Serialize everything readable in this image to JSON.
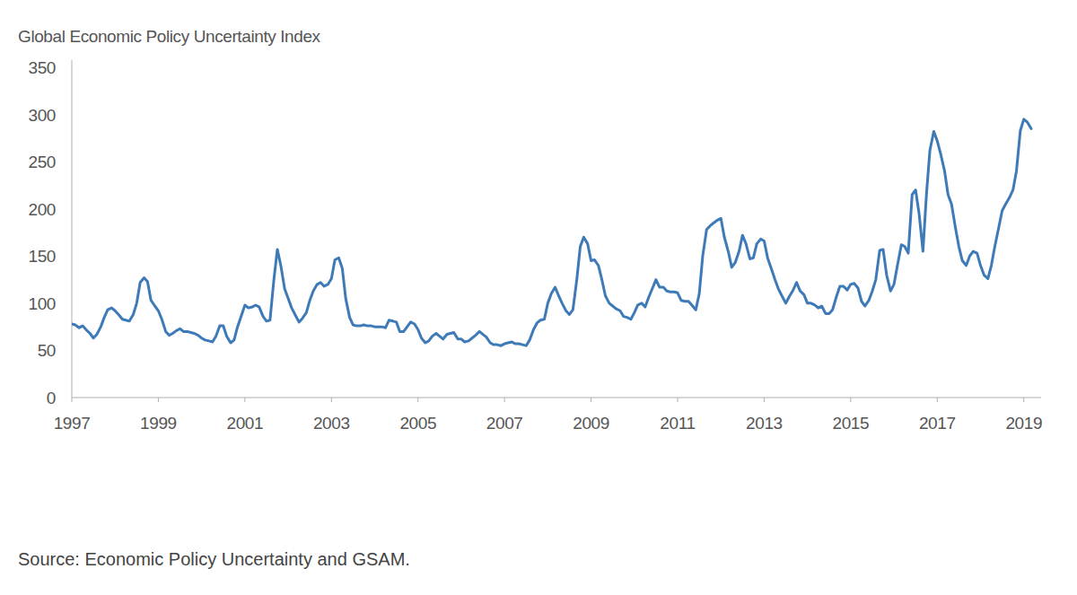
{
  "chart_data": {
    "type": "line",
    "title": "Global Economic Policy Uncertainty Index",
    "source": "Source: Economic Policy Uncertainty and GSAM.",
    "color": "#3f7ab8",
    "xlim": [
      1997,
      2019.4
    ],
    "xticks": [
      1997,
      1999,
      2001,
      2003,
      2005,
      2007,
      2009,
      2011,
      2013,
      2015,
      2017,
      2019
    ],
    "ylim": [
      0,
      350
    ],
    "yticks": [
      0,
      50,
      100,
      150,
      200,
      250,
      300,
      350
    ],
    "grid": false,
    "x": [
      1997.0,
      1997.08,
      1997.17,
      1997.25,
      1997.33,
      1997.42,
      1997.5,
      1997.58,
      1997.67,
      1997.75,
      1997.83,
      1997.92,
      1998.0,
      1998.08,
      1998.17,
      1998.25,
      1998.33,
      1998.42,
      1998.5,
      1998.58,
      1998.67,
      1998.75,
      1998.83,
      1998.92,
      1999.0,
      1999.08,
      1999.17,
      1999.25,
      1999.33,
      1999.42,
      1999.5,
      1999.58,
      1999.67,
      1999.75,
      1999.83,
      1999.92,
      2000.0,
      2000.08,
      2000.17,
      2000.25,
      2000.33,
      2000.42,
      2000.5,
      2000.58,
      2000.67,
      2000.75,
      2000.83,
      2000.92,
      2001.0,
      2001.08,
      2001.17,
      2001.25,
      2001.33,
      2001.42,
      2001.5,
      2001.58,
      2001.67,
      2001.75,
      2001.83,
      2001.92,
      2002.0,
      2002.08,
      2002.17,
      2002.25,
      2002.33,
      2002.42,
      2002.5,
      2002.58,
      2002.67,
      2002.75,
      2002.83,
      2002.92,
      2003.0,
      2003.08,
      2003.17,
      2003.25,
      2003.33,
      2003.42,
      2003.5,
      2003.58,
      2003.67,
      2003.75,
      2003.83,
      2003.92,
      2004.0,
      2004.08,
      2004.17,
      2004.25,
      2004.33,
      2004.42,
      2004.5,
      2004.58,
      2004.67,
      2004.75,
      2004.83,
      2004.92,
      2005.0,
      2005.08,
      2005.17,
      2005.25,
      2005.33,
      2005.42,
      2005.5,
      2005.58,
      2005.67,
      2005.75,
      2005.83,
      2005.92,
      2006.0,
      2006.08,
      2006.17,
      2006.25,
      2006.33,
      2006.42,
      2006.5,
      2006.58,
      2006.67,
      2006.75,
      2006.83,
      2006.92,
      2007.0,
      2007.08,
      2007.17,
      2007.25,
      2007.33,
      2007.42,
      2007.5,
      2007.58,
      2007.67,
      2007.75,
      2007.83,
      2007.92,
      2008.0,
      2008.08,
      2008.17,
      2008.25,
      2008.33,
      2008.42,
      2008.5,
      2008.58,
      2008.67,
      2008.75,
      2008.83,
      2008.92,
      2009.0,
      2009.08,
      2009.17,
      2009.25,
      2009.33,
      2009.42,
      2009.5,
      2009.58,
      2009.67,
      2009.75,
      2009.83,
      2009.92,
      2010.0,
      2010.08,
      2010.17,
      2010.25,
      2010.33,
      2010.42,
      2010.5,
      2010.58,
      2010.67,
      2010.75,
      2010.83,
      2010.92,
      2011.0,
      2011.08,
      2011.17,
      2011.25,
      2011.33,
      2011.42,
      2011.5,
      2011.58,
      2011.67,
      2011.75,
      2011.83,
      2011.92,
      2012.0,
      2012.08,
      2012.17,
      2012.25,
      2012.33,
      2012.42,
      2012.5,
      2012.58,
      2012.67,
      2012.75,
      2012.83,
      2012.92,
      2013.0,
      2013.08,
      2013.17,
      2013.25,
      2013.33,
      2013.42,
      2013.5,
      2013.58,
      2013.67,
      2013.75,
      2013.83,
      2013.92,
      2014.0,
      2014.08,
      2014.17,
      2014.25,
      2014.33,
      2014.42,
      2014.5,
      2014.58,
      2014.67,
      2014.75,
      2014.83,
      2014.92,
      2015.0,
      2015.08,
      2015.17,
      2015.25,
      2015.33,
      2015.42,
      2015.5,
      2015.58,
      2015.67,
      2015.75,
      2015.83,
      2015.92,
      2016.0,
      2016.08,
      2016.17,
      2016.25,
      2016.33,
      2016.42,
      2016.5,
      2016.58,
      2016.67,
      2016.75,
      2016.83,
      2016.92,
      2017.0,
      2017.08,
      2017.17,
      2017.25,
      2017.33,
      2017.42,
      2017.5,
      2017.58,
      2017.67,
      2017.75,
      2017.83,
      2017.92,
      2018.0,
      2018.08,
      2018.17,
      2018.25,
      2018.33,
      2018.42,
      2018.5,
      2018.58,
      2018.67,
      2018.75,
      2018.83,
      2018.92,
      2019.0,
      2019.08,
      2019.17
    ],
    "values": [
      78,
      77,
      74,
      76,
      72,
      68,
      63,
      67,
      75,
      85,
      93,
      95,
      92,
      88,
      83,
      82,
      81,
      88,
      100,
      122,
      127,
      123,
      103,
      97,
      92,
      83,
      70,
      66,
      68,
      71,
      73,
      70,
      70,
      69,
      68,
      66,
      63,
      61,
      60,
      59,
      65,
      76,
      76,
      65,
      58,
      61,
      75,
      87,
      98,
      95,
      96,
      98,
      96,
      86,
      81,
      82,
      125,
      157,
      140,
      115,
      105,
      95,
      87,
      80,
      84,
      90,
      103,
      113,
      120,
      122,
      118,
      120,
      126,
      146,
      148,
      137,
      105,
      85,
      77,
      76,
      76,
      77,
      76,
      76,
      75,
      75,
      75,
      74,
      82,
      81,
      80,
      70,
      70,
      75,
      80,
      78,
      72,
      63,
      58,
      60,
      65,
      68,
      65,
      62,
      67,
      68,
      69,
      62,
      62,
      59,
      60,
      63,
      66,
      70,
      67,
      64,
      58,
      56,
      56,
      55,
      57,
      58,
      59,
      57,
      57,
      56,
      55,
      61,
      72,
      79,
      82,
      83,
      100,
      110,
      117,
      108,
      100,
      92,
      88,
      93,
      125,
      160,
      170,
      163,
      145,
      146,
      140,
      125,
      108,
      100,
      97,
      94,
      92,
      86,
      85,
      83,
      90,
      98,
      100,
      96,
      106,
      116,
      125,
      117,
      117,
      113,
      112,
      112,
      111,
      103,
      102,
      102,
      98,
      93,
      110,
      150,
      178,
      182,
      185,
      188,
      190,
      170,
      155,
      138,
      143,
      155,
      172,
      163,
      147,
      148,
      163,
      168,
      166,
      148,
      136,
      125,
      115,
      107,
      100,
      107,
      114,
      122,
      113,
      109,
      100,
      100,
      98,
      95,
      97,
      89,
      89,
      93,
      107,
      118,
      118,
      114,
      120,
      121,
      116,
      102,
      97,
      103,
      113,
      125,
      156,
      157,
      130,
      113,
      120,
      140,
      162,
      160,
      153,
      215,
      220,
      195,
      155,
      215,
      262,
      282,
      272,
      258,
      240,
      215,
      205,
      180,
      160,
      145,
      140,
      150,
      155,
      153,
      140,
      130,
      126,
      140,
      160,
      180,
      198,
      205,
      212,
      220,
      240,
      283,
      295,
      292,
      285
    ]
  }
}
